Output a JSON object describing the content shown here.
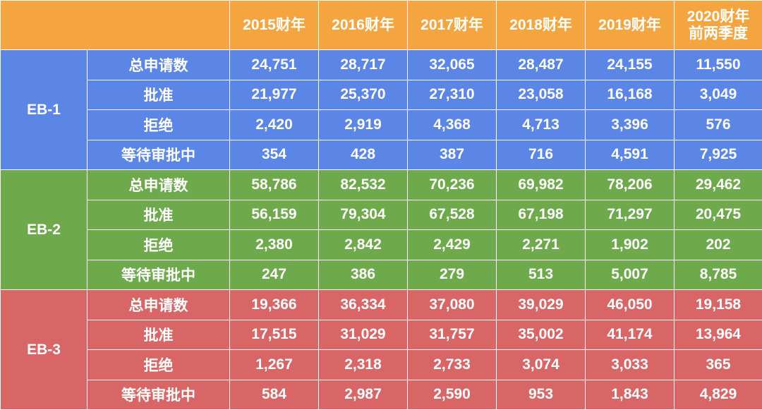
{
  "colors": {
    "header": "#f4a53f",
    "eb1": "#5b86e6",
    "eb2": "#6ea94c",
    "eb3": "#d86666"
  },
  "header": {
    "corner": "",
    "columns": [
      [
        "2015财年"
      ],
      [
        "2016财年"
      ],
      [
        "2017财年"
      ],
      [
        "2018财年"
      ],
      [
        "2019财年"
      ],
      [
        "2020财年",
        "前两季度"
      ]
    ]
  },
  "groups": [
    {
      "label": "EB-1",
      "rows": [
        {
          "metric": "总申请数",
          "values": [
            "24,751",
            "28,717",
            "32,065",
            "28,487",
            "24,155",
            "11,550"
          ]
        },
        {
          "metric": "批准",
          "values": [
            "21,977",
            "25,370",
            "27,310",
            "23,058",
            "16,168",
            "3,049"
          ]
        },
        {
          "metric": "拒绝",
          "values": [
            "2,420",
            "2,919",
            "4,368",
            "4,713",
            "3,396",
            "576"
          ]
        },
        {
          "metric": "等待审批中",
          "values": [
            "354",
            "428",
            "387",
            "716",
            "4,591",
            "7,925"
          ]
        }
      ]
    },
    {
      "label": "EB-2",
      "rows": [
        {
          "metric": "总申请数",
          "values": [
            "58,786",
            "82,532",
            "70,236",
            "69,982",
            "78,206",
            "29,462"
          ]
        },
        {
          "metric": "批准",
          "values": [
            "56,159",
            "79,304",
            "67,528",
            "67,198",
            "71,297",
            "20,475"
          ]
        },
        {
          "metric": "拒绝",
          "values": [
            "2,380",
            "2,842",
            "2,429",
            "2,271",
            "1,902",
            "202"
          ]
        },
        {
          "metric": "等待审批中",
          "values": [
            "247",
            "386",
            "279",
            "513",
            "5,007",
            "8,785"
          ]
        }
      ]
    },
    {
      "label": "EB-3",
      "rows": [
        {
          "metric": "总申请数",
          "values": [
            "19,366",
            "36,334",
            "37,080",
            "39,029",
            "46,050",
            "19,158"
          ]
        },
        {
          "metric": "批准",
          "values": [
            "17,515",
            "31,029",
            "31,757",
            "35,002",
            "41,174",
            "13,964"
          ]
        },
        {
          "metric": "拒绝",
          "values": [
            "1,267",
            "2,318",
            "2,733",
            "3,074",
            "3,033",
            "365"
          ]
        },
        {
          "metric": "等待审批中",
          "values": [
            "584",
            "2,987",
            "2,590",
            "953",
            "1,843",
            "4,829"
          ]
        }
      ]
    }
  ]
}
